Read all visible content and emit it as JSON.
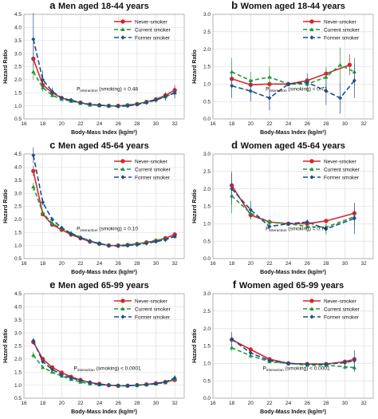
{
  "chart_data": [
    {
      "type": "line",
      "letter": "a",
      "title": "Men aged 18-44 years",
      "xlabel": "Body-Mass Index (kg/m²)",
      "ylabel": "Hazard Ratio",
      "xlim": [
        16,
        33
      ],
      "ylim": [
        0.5,
        4.5
      ],
      "xticks": [
        "16",
        "18",
        "20",
        "22",
        "24",
        "26",
        "28",
        "30",
        "32"
      ],
      "yticks": [
        "0.5",
        "1.0",
        "1.5",
        "2.0",
        "2.5",
        "3.0",
        "3.5",
        "4.0",
        "4.5"
      ],
      "legend_position": "top-right",
      "p_interaction": "P interaction (smoking) = 0.48",
      "series": [
        {
          "name": "Never-smoker",
          "color": "#d7262b",
          "dash": "solid",
          "marker": "circle",
          "x": [
            17,
            18,
            19,
            20,
            21,
            22,
            23,
            24,
            25,
            26,
            27,
            28,
            29,
            30,
            31,
            32
          ],
          "y": [
            2.8,
            1.8,
            1.5,
            1.3,
            1.2,
            1.12,
            1.05,
            1.02,
            1.0,
            1.0,
            1.02,
            1.07,
            1.15,
            1.25,
            1.4,
            1.6
          ],
          "err": [
            0.5,
            0.2,
            0.1,
            0.06,
            0.05,
            0.04,
            0.03,
            0.02,
            0,
            0.02,
            0.03,
            0.05,
            0.06,
            0.08,
            0.12,
            0.2
          ]
        },
        {
          "name": "Current smoker",
          "color": "#1f9a3a",
          "dash": "5,3",
          "marker": "triangle",
          "x": [
            17,
            18,
            19,
            20,
            21,
            22,
            23,
            24,
            25,
            26,
            27,
            28,
            29,
            30,
            31,
            32
          ],
          "y": [
            2.3,
            1.7,
            1.4,
            1.25,
            1.18,
            1.1,
            1.04,
            1.02,
            1.0,
            1.0,
            1.03,
            1.08,
            1.15,
            1.25,
            1.35,
            1.5
          ],
          "err": [
            0.3,
            0.15,
            0.08,
            0.05,
            0.05,
            0.04,
            0.03,
            0.02,
            0,
            0.02,
            0.03,
            0.05,
            0.06,
            0.08,
            0.1,
            0.15
          ]
        },
        {
          "name": "Former smoker",
          "color": "#1d4e89",
          "dash": "6,3",
          "marker": "diamond",
          "x": [
            17,
            18,
            19,
            20,
            21,
            22,
            23,
            24,
            25,
            26,
            27,
            28,
            29,
            30,
            31,
            32
          ],
          "y": [
            3.55,
            2.0,
            1.55,
            1.3,
            1.22,
            1.12,
            1.06,
            1.03,
            1.0,
            0.98,
            1.0,
            1.05,
            1.12,
            1.22,
            1.35,
            1.5
          ],
          "err": [
            1.0,
            0.35,
            0.15,
            0.08,
            0.06,
            0.05,
            0.04,
            0.03,
            0,
            0.03,
            0.04,
            0.05,
            0.07,
            0.1,
            0.15,
            0.22
          ]
        }
      ]
    },
    {
      "type": "line",
      "letter": "b",
      "title": "Women aged 18-44 years",
      "xlabel": "Body-Mass Index (kg/m²)",
      "ylabel": "Hazard Ratio",
      "xlim": [
        16,
        33
      ],
      "ylim": [
        0,
        3.0
      ],
      "xticks": [
        "16",
        "18",
        "20",
        "22",
        "24",
        "26",
        "28",
        "30",
        "32"
      ],
      "yticks": [
        "0.0",
        "0.5",
        "1.0",
        "1.5",
        "2.0",
        "2.5",
        "3.0"
      ],
      "legend_position": "top-right",
      "p_interaction": "P interaction (smoking) = 0.73",
      "series": [
        {
          "name": "Never-smoker",
          "color": "#d7262b",
          "dash": "solid",
          "marker": "circle",
          "x": [
            18,
            20,
            22,
            24,
            26,
            28,
            30.5
          ],
          "y": [
            1.15,
            0.98,
            1.0,
            1.0,
            1.1,
            1.3,
            1.55
          ],
          "err": [
            0.25,
            0.1,
            0.08,
            0,
            0.08,
            0.15,
            0.3
          ]
        },
        {
          "name": "Current smoker",
          "color": "#1f9a3a",
          "dash": "5,3",
          "marker": "triangle",
          "x": [
            18,
            20,
            22,
            24,
            26,
            28,
            29.5,
            31
          ],
          "y": [
            1.35,
            1.1,
            1.2,
            1.0,
            1.0,
            1.2,
            1.55,
            1.35
          ],
          "err": [
            0.4,
            0.25,
            0.3,
            0,
            0.15,
            0.3,
            0.5,
            0.4
          ]
        },
        {
          "name": "Former smoker",
          "color": "#1d4e89",
          "dash": "6,3",
          "marker": "diamond",
          "x": [
            18,
            20,
            22,
            24,
            26,
            28,
            29.5,
            31
          ],
          "y": [
            0.95,
            0.8,
            0.6,
            1.0,
            1.05,
            0.8,
            0.6,
            1.1
          ],
          "err": [
            0.35,
            0.3,
            0.35,
            0,
            0.25,
            0.4,
            0.45,
            0.5
          ]
        }
      ]
    },
    {
      "type": "line",
      "letter": "c",
      "title": "Men aged 45-64 years",
      "xlabel": "Body-Mass Index (kg/m²)",
      "ylabel": "Hazard Ratio",
      "xlim": [
        16,
        33
      ],
      "ylim": [
        0.5,
        4.5
      ],
      "xticks": [
        "16",
        "18",
        "20",
        "22",
        "24",
        "26",
        "28",
        "30",
        "32"
      ],
      "yticks": [
        "0.5",
        "1.0",
        "1.5",
        "2.0",
        "2.5",
        "3.0",
        "3.5",
        "4.0",
        "4.5"
      ],
      "legend_position": "top-right",
      "p_interaction": "P interaction (smoking) = 0.10",
      "series": [
        {
          "name": "Never-smoker",
          "color": "#d7262b",
          "dash": "solid",
          "marker": "circle",
          "x": [
            17,
            18,
            19,
            20,
            21,
            22,
            23,
            24,
            25,
            26,
            27,
            28,
            29,
            30,
            31,
            32
          ],
          "y": [
            3.85,
            2.2,
            1.8,
            1.6,
            1.42,
            1.28,
            1.15,
            1.07,
            1.0,
            1.0,
            1.02,
            1.06,
            1.12,
            1.18,
            1.28,
            1.42
          ],
          "err": [
            0.2,
            0.08,
            0.05,
            0.04,
            0.03,
            0.02,
            0.02,
            0.01,
            0,
            0.01,
            0.02,
            0.02,
            0.03,
            0.04,
            0.05,
            0.08
          ]
        },
        {
          "name": "Current smoker",
          "color": "#1f9a3a",
          "dash": "5,3",
          "marker": "triangle",
          "x": [
            17,
            18,
            19,
            20,
            21,
            22,
            23,
            24,
            25,
            26,
            27,
            28,
            29,
            30,
            31,
            32
          ],
          "y": [
            3.25,
            2.25,
            1.85,
            1.65,
            1.48,
            1.32,
            1.18,
            1.08,
            1.0,
            1.0,
            1.03,
            1.07,
            1.12,
            1.2,
            1.25,
            1.35
          ],
          "err": [
            0.15,
            0.08,
            0.05,
            0.04,
            0.03,
            0.02,
            0.02,
            0.01,
            0,
            0.01,
            0.02,
            0.02,
            0.03,
            0.04,
            0.05,
            0.07
          ]
        },
        {
          "name": "Former smoker",
          "color": "#1d4e89",
          "dash": "6,3",
          "marker": "diamond",
          "x": [
            17,
            18,
            19,
            20,
            21,
            22,
            23,
            24,
            25,
            26,
            27,
            28,
            29,
            30,
            31,
            32
          ],
          "y": [
            4.45,
            2.65,
            2.0,
            1.68,
            1.45,
            1.3,
            1.17,
            1.07,
            1.0,
            0.98,
            1.0,
            1.03,
            1.08,
            1.15,
            1.22,
            1.35
          ],
          "err": [
            0.3,
            0.12,
            0.07,
            0.05,
            0.04,
            0.03,
            0.02,
            0.02,
            0,
            0.02,
            0.02,
            0.03,
            0.03,
            0.04,
            0.06,
            0.08
          ]
        }
      ]
    },
    {
      "type": "line",
      "letter": "d",
      "title": "Women aged 45-64 years",
      "xlabel": "Body-Mass Index (kg/m²)",
      "ylabel": "Hazard Ratio",
      "xlim": [
        16,
        33
      ],
      "ylim": [
        0,
        3.0
      ],
      "xticks": [
        "16",
        "18",
        "20",
        "22",
        "24",
        "26",
        "28",
        "30",
        "32"
      ],
      "yticks": [
        "0.0",
        "0.5",
        "1.0",
        "1.5",
        "2.0",
        "2.5",
        "3.0"
      ],
      "legend_position": "top-right",
      "p_interaction": "P interaction (smoking) = 0.76",
      "series": [
        {
          "name": "Never-smoker",
          "color": "#d7262b",
          "dash": "solid",
          "marker": "circle",
          "x": [
            18,
            20,
            22,
            24,
            26,
            28,
            31
          ],
          "y": [
            2.1,
            1.25,
            1.05,
            1.0,
            1.0,
            1.08,
            1.3
          ],
          "err": [
            0.4,
            0.12,
            0.05,
            0,
            0.04,
            0.06,
            0.1
          ]
        },
        {
          "name": "Current smoker",
          "color": "#1f9a3a",
          "dash": "5,3",
          "marker": "triangle",
          "x": [
            18,
            20,
            22,
            24,
            26,
            28,
            31
          ],
          "y": [
            1.8,
            1.3,
            1.05,
            1.0,
            0.92,
            0.9,
            1.2
          ],
          "err": [
            0.5,
            0.15,
            0.08,
            0,
            0.06,
            0.1,
            0.3
          ]
        },
        {
          "name": "Former smoker",
          "color": "#1d4e89",
          "dash": "6,3",
          "marker": "diamond",
          "x": [
            18,
            20,
            22,
            24,
            26,
            28,
            31
          ],
          "y": [
            2.0,
            1.4,
            0.92,
            1.0,
            1.05,
            0.85,
            1.15
          ],
          "err": [
            0.45,
            0.25,
            0.1,
            0,
            0.08,
            0.15,
            0.45
          ]
        }
      ]
    },
    {
      "type": "line",
      "letter": "e",
      "title": "Men aged 65-99 years",
      "xlabel": "Body-Mass Index (kg/m²)",
      "ylabel": "Hazard Ratio",
      "xlim": [
        16,
        33
      ],
      "ylim": [
        0.5,
        4.5
      ],
      "xticks": [
        "16",
        "18",
        "20",
        "22",
        "24",
        "26",
        "28",
        "30",
        "32"
      ],
      "yticks": [
        "0.5",
        "1.0",
        "1.5",
        "2.0",
        "2.5",
        "3.0",
        "3.5",
        "4.0",
        "4.5"
      ],
      "legend_position": "top-right",
      "p_interaction": "P interaction (smoking) < 0.0001",
      "series": [
        {
          "name": "Never-smoker",
          "color": "#d7262b",
          "dash": "solid",
          "marker": "circle",
          "x": [
            17,
            18,
            19,
            20,
            21,
            22,
            23,
            24,
            25,
            26,
            27,
            28,
            29,
            30,
            31,
            32
          ],
          "y": [
            2.65,
            2.0,
            1.68,
            1.48,
            1.32,
            1.2,
            1.1,
            1.05,
            1.0,
            0.98,
            0.98,
            1.0,
            1.03,
            1.07,
            1.12,
            1.2
          ],
          "err": [
            0.1,
            0.05,
            0.03,
            0.02,
            0.02,
            0.02,
            0.01,
            0.01,
            0,
            0.01,
            0.01,
            0.02,
            0.02,
            0.03,
            0.04,
            0.06
          ]
        },
        {
          "name": "Current smoker",
          "color": "#1f9a3a",
          "dash": "5,3",
          "marker": "triangle",
          "x": [
            17,
            18,
            19,
            20,
            21,
            22,
            23,
            24,
            25,
            26,
            27,
            28,
            29,
            30,
            31,
            32
          ],
          "y": [
            2.15,
            1.68,
            1.5,
            1.35,
            1.22,
            1.12,
            1.05,
            1.02,
            1.0,
            0.98,
            0.98,
            1.0,
            1.02,
            1.05,
            1.1,
            1.25
          ],
          "err": [
            0.12,
            0.06,
            0.04,
            0.03,
            0.02,
            0.02,
            0.02,
            0.01,
            0,
            0.01,
            0.02,
            0.02,
            0.03,
            0.04,
            0.06,
            0.1
          ]
        },
        {
          "name": "Former smoker",
          "color": "#1d4e89",
          "dash": "6,3",
          "marker": "diamond",
          "x": [
            17,
            18,
            19,
            20,
            21,
            22,
            23,
            24,
            25,
            26,
            27,
            28,
            29,
            30,
            31,
            32
          ],
          "y": [
            2.7,
            1.9,
            1.6,
            1.4,
            1.28,
            1.18,
            1.1,
            1.03,
            1.0,
            0.98,
            0.98,
            1.0,
            1.02,
            1.06,
            1.12,
            1.28
          ],
          "err": [
            0.1,
            0.05,
            0.03,
            0.02,
            0.02,
            0.02,
            0.01,
            0.01,
            0,
            0.01,
            0.01,
            0.02,
            0.02,
            0.03,
            0.05,
            0.1
          ]
        }
      ]
    },
    {
      "type": "line",
      "letter": "f",
      "title": "Women aged 65-99 years",
      "xlabel": "Body-Mass Index (kg/m²)",
      "ylabel": "Hazard Ratio",
      "xlim": [
        16,
        33
      ],
      "ylim": [
        0,
        3.0
      ],
      "xticks": [
        "16",
        "18",
        "20",
        "22",
        "24",
        "26",
        "28",
        "30",
        "32"
      ],
      "yticks": [
        "0.0",
        "0.5",
        "1.0",
        "1.5",
        "2.0",
        "2.5",
        "3.0"
      ],
      "legend_position": "top-right",
      "p_interaction": "P interaction (smoking) < 0.0001",
      "series": [
        {
          "name": "Never-smoker",
          "color": "#d7262b",
          "dash": "solid",
          "marker": "circle",
          "x": [
            18,
            20,
            22,
            24,
            26,
            28,
            30,
            31
          ],
          "y": [
            1.68,
            1.4,
            1.12,
            1.0,
            0.98,
            0.98,
            1.05,
            1.12
          ],
          "err": [
            0.08,
            0.05,
            0.03,
            0,
            0.02,
            0.03,
            0.05,
            0.08
          ]
        },
        {
          "name": "Current smoker",
          "color": "#1f9a3a",
          "dash": "5,3",
          "marker": "triangle",
          "x": [
            18,
            20,
            22,
            24,
            26,
            28,
            30,
            31
          ],
          "y": [
            1.45,
            1.22,
            1.05,
            1.0,
            0.95,
            0.95,
            0.9,
            0.88
          ],
          "err": [
            0.1,
            0.06,
            0.04,
            0,
            0.03,
            0.04,
            0.08,
            0.12
          ]
        },
        {
          "name": "Former smoker",
          "color": "#1d4e89",
          "dash": "6,3",
          "marker": "diamond",
          "x": [
            18,
            20,
            22,
            24,
            26,
            28,
            30,
            31
          ],
          "y": [
            1.7,
            1.3,
            1.08,
            1.0,
            0.98,
            0.98,
            1.02,
            1.08
          ],
          "err": [
            0.2,
            0.08,
            0.04,
            0,
            0.03,
            0.04,
            0.08,
            0.3
          ]
        }
      ]
    }
  ]
}
